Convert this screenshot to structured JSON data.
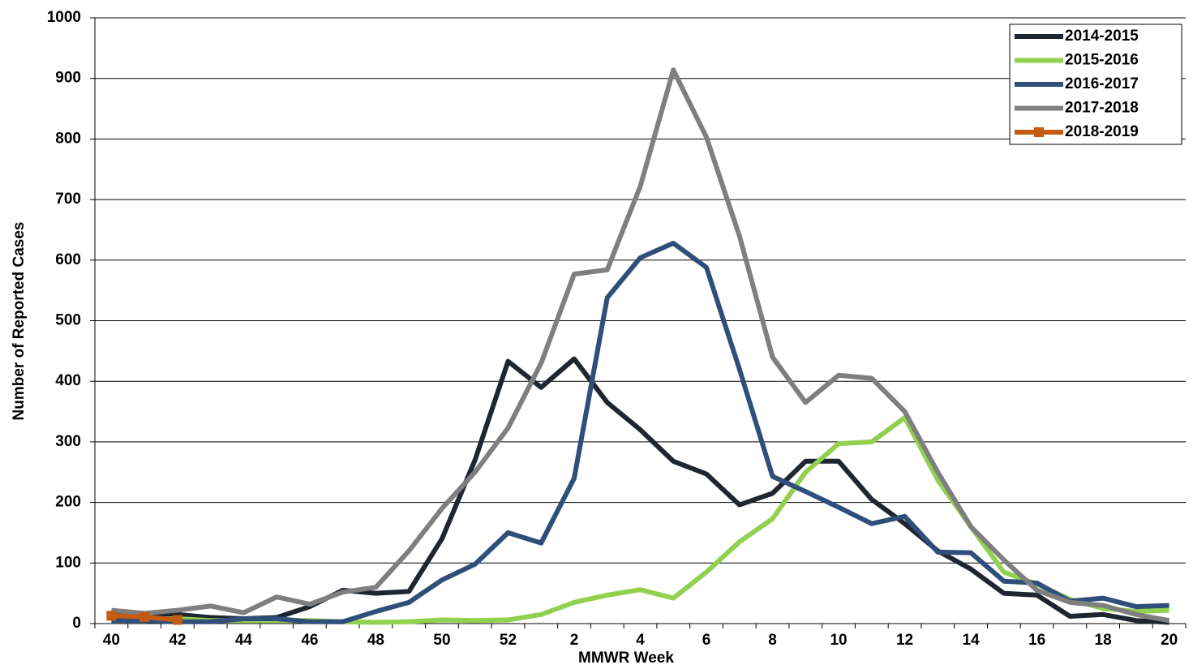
{
  "chart_data": {
    "type": "line",
    "xlabel": "MMWR Week",
    "ylabel": "Number of Reported Cases",
    "categories": [
      "40",
      null,
      "42",
      null,
      "44",
      null,
      "46",
      null,
      "48",
      null,
      "50",
      null,
      "52",
      null,
      "2",
      null,
      "4",
      null,
      "6",
      null,
      "8",
      null,
      "10",
      null,
      "12",
      null,
      "14",
      null,
      "16",
      null,
      "18",
      null,
      "20"
    ],
    "ylim": [
      0,
      1000
    ],
    "yticks": [
      0,
      100,
      200,
      300,
      400,
      500,
      600,
      700,
      800,
      900,
      1000
    ],
    "grid": true,
    "legend": "upper right",
    "series": [
      {
        "name": "2014-2015",
        "color": "#1f2630",
        "values": [
          15,
          12,
          15,
          10,
          8,
          10,
          28,
          55,
          50,
          53,
          140,
          270,
          433,
          390,
          437,
          365,
          320,
          268,
          247,
          196,
          215,
          268,
          268,
          205,
          165,
          120,
          90,
          50,
          47,
          12,
          15,
          5,
          2
        ]
      },
      {
        "name": "2015-2016",
        "color": "#92d050",
        "values": [
          8,
          8,
          8,
          5,
          5,
          5,
          5,
          3,
          2,
          3,
          6,
          5,
          6,
          15,
          35,
          47,
          56,
          42,
          85,
          135,
          173,
          250,
          297,
          300,
          340,
          237,
          160,
          85,
          65,
          40,
          25,
          20,
          22
        ]
      },
      {
        "name": "2016-2017",
        "color": "#2f4f7a",
        "values": [
          5,
          5,
          3,
          3,
          8,
          8,
          3,
          3,
          20,
          35,
          72,
          98,
          150,
          133,
          240,
          538,
          604,
          628,
          588,
          420,
          243,
          218,
          192,
          165,
          177,
          118,
          117,
          70,
          67,
          37,
          42,
          28,
          30
        ]
      },
      {
        "name": "2017-2018",
        "color": "#7f7f7f",
        "values": [
          22,
          17,
          22,
          29,
          18,
          44,
          32,
          52,
          60,
          120,
          190,
          250,
          323,
          430,
          577,
          584,
          722,
          914,
          803,
          640,
          440,
          365,
          410,
          405,
          350,
          250,
          160,
          105,
          55,
          35,
          30,
          15,
          5
        ]
      },
      {
        "name": "2018-2019",
        "color": "#c55a11",
        "marker": "square",
        "values": [
          13,
          11,
          6,
          null,
          null,
          null,
          null,
          null,
          null,
          null,
          null,
          null,
          null,
          null,
          null,
          null,
          null,
          null,
          null,
          null,
          null,
          null,
          null,
          null,
          null,
          null,
          null,
          null,
          null,
          null,
          null,
          null,
          null
        ]
      }
    ]
  }
}
